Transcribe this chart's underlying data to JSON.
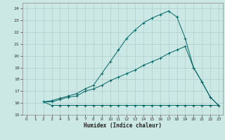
{
  "xlabel": "Humidex (Indice chaleur)",
  "bg_color": "#cce8e4",
  "grid_color": "#b0cccc",
  "line_color": "#006666",
  "xlim": [
    -0.5,
    23.5
  ],
  "ylim": [
    15,
    24.5
  ],
  "yticks": [
    15,
    16,
    17,
    18,
    19,
    20,
    21,
    22,
    23,
    24
  ],
  "xticks": [
    0,
    1,
    2,
    3,
    4,
    5,
    6,
    7,
    8,
    9,
    10,
    11,
    12,
    13,
    14,
    15,
    16,
    17,
    18,
    19,
    20,
    21,
    22,
    23
  ],
  "series1_x": [
    2,
    3,
    4,
    5,
    6,
    7,
    8,
    9,
    10,
    11,
    12,
    13,
    14,
    15,
    16,
    17,
    18,
    19,
    20,
    21,
    22,
    23
  ],
  "series1_y": [
    16.1,
    15.8,
    15.8,
    15.8,
    15.8,
    15.8,
    15.8,
    15.8,
    15.8,
    15.8,
    15.8,
    15.8,
    15.8,
    15.8,
    15.8,
    15.8,
    15.8,
    15.8,
    15.8,
    15.8,
    15.8,
    15.8
  ],
  "series2_x": [
    2,
    3,
    4,
    5,
    6,
    7,
    8,
    9,
    10,
    11,
    12,
    13,
    14,
    15,
    16,
    17,
    18,
    19,
    20,
    21,
    22,
    23
  ],
  "series2_y": [
    16.1,
    16.1,
    16.3,
    16.5,
    16.6,
    17.0,
    17.2,
    17.5,
    17.9,
    18.2,
    18.5,
    18.8,
    19.2,
    19.5,
    19.8,
    20.2,
    20.5,
    20.8,
    19.0,
    17.8,
    16.5,
    15.8
  ],
  "series3_x": [
    2,
    3,
    4,
    5,
    6,
    7,
    8,
    9,
    10,
    11,
    12,
    13,
    14,
    15,
    16,
    17,
    18,
    19,
    20,
    21,
    22,
    23
  ],
  "series3_y": [
    16.1,
    16.2,
    16.4,
    16.6,
    16.8,
    17.2,
    17.5,
    18.5,
    19.5,
    20.5,
    21.5,
    22.2,
    22.8,
    23.2,
    23.5,
    23.8,
    23.3,
    21.5,
    19.0,
    17.8,
    16.5,
    15.8
  ]
}
